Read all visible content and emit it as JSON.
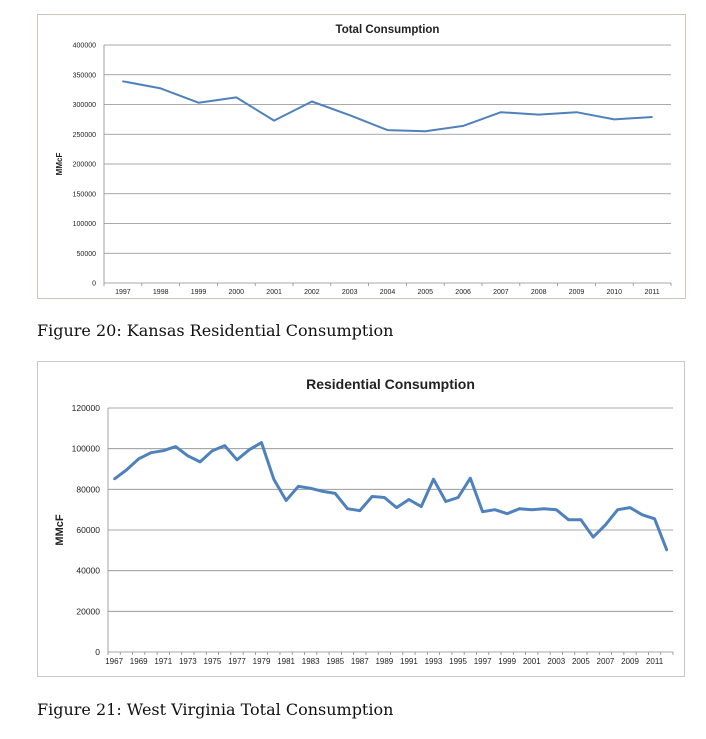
{
  "chart_data": [
    {
      "type": "line",
      "title": "Total Consumption",
      "xlabel": "",
      "ylabel": "MMcF",
      "ylim": [
        0,
        400000
      ],
      "yticks": [
        0,
        50000,
        100000,
        150000,
        200000,
        250000,
        300000,
        350000,
        400000
      ],
      "grid": true,
      "legend": "none",
      "line_color": "#4f81bd",
      "x": [
        "1997",
        "1998",
        "1999",
        "2000",
        "2001",
        "2002",
        "2003",
        "2004",
        "2005",
        "2006",
        "2007",
        "2008",
        "2009",
        "2010",
        "2011"
      ],
      "series": [
        {
          "values": [
            339000,
            327000,
            303000,
            312000,
            273000,
            305000,
            282000,
            257000,
            255000,
            264000,
            287000,
            283000,
            287000,
            275000,
            279000
          ]
        }
      ]
    },
    {
      "type": "line",
      "title": "Residential Consumption",
      "xlabel": "",
      "ylabel": "MMcF",
      "ylim": [
        0,
        120000
      ],
      "yticks": [
        0,
        20000,
        40000,
        60000,
        80000,
        100000,
        120000
      ],
      "grid": true,
      "legend": "none",
      "line_color": "#4f81bd",
      "x_start": 1967,
      "x_end": 2012,
      "x_tick_labels": [
        "1967",
        "1969",
        "1971",
        "1973",
        "1975",
        "1977",
        "1979",
        "1981",
        "1983",
        "1985",
        "1987",
        "1989",
        "1991",
        "1993",
        "1995",
        "1997",
        "1999",
        "2001",
        "2003",
        "2005",
        "2007",
        "2009",
        "2011"
      ],
      "series": [
        {
          "values": [
            85000,
            89500,
            95000,
            98000,
            99000,
            101000,
            96500,
            93500,
            99000,
            101500,
            94500,
            99500,
            103000,
            85000,
            74500,
            81500,
            80500,
            79000,
            78000,
            70500,
            69500,
            76500,
            76000,
            71000,
            75000,
            71500,
            85000,
            74000,
            76000,
            85500,
            69000,
            70000,
            68000,
            70500,
            70000,
            70500,
            70000,
            65000,
            65000,
            56500,
            62500,
            70000,
            71000,
            67500,
            65500,
            50000
          ]
        }
      ]
    }
  ],
  "captions": {
    "figure20": "Figure 20: Kansas Residential Consumption",
    "figure21": "Figure 21: West Virginia Total Consumption"
  }
}
